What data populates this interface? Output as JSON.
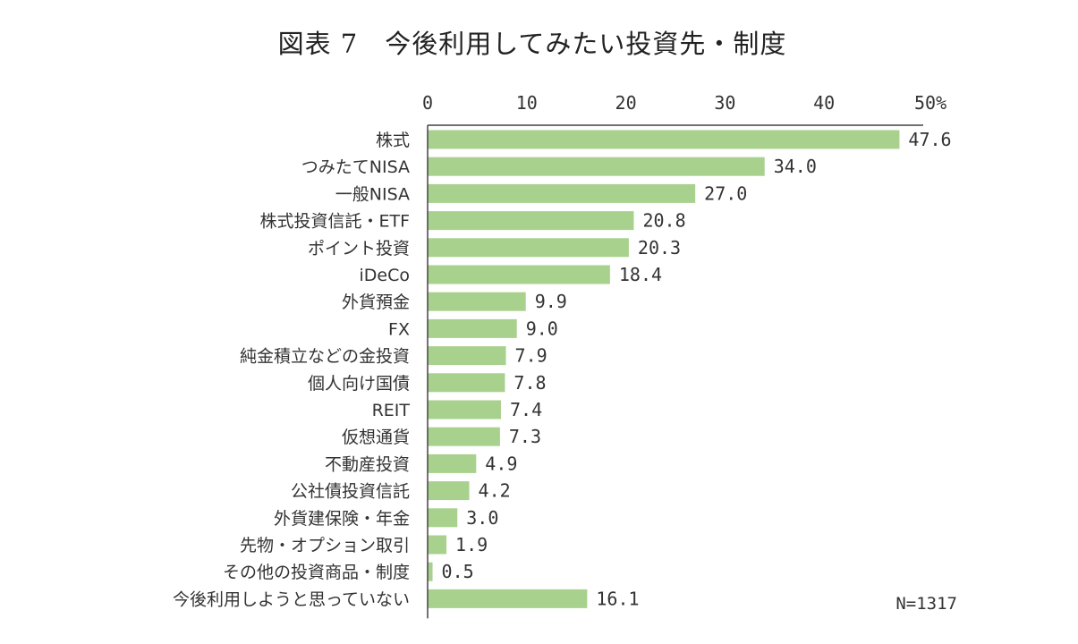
{
  "title": "図表 7　今後利用してみたい投資先・制度",
  "chart_data": {
    "type": "bar",
    "orientation": "horizontal",
    "title": "図表 7　今後利用してみたい投資先・制度",
    "xlim": [
      0,
      50
    ],
    "ticks": [
      "0",
      "10",
      "20",
      "30",
      "40",
      "50%"
    ],
    "tick_values": [
      0,
      10,
      20,
      30,
      40,
      50
    ],
    "grid": false,
    "bar_color": "#a9d18e",
    "categories": [
      "株式",
      "つみたてNISA",
      "一般NISA",
      "株式投資信託・ETF",
      "ポイント投資",
      "iDeCo",
      "外貨預金",
      "FX",
      "純金積立などの金投資",
      "個人向け国債",
      "REIT",
      "仮想通貨",
      "不動産投資",
      "公社債投資信託",
      "外貨建保険・年金",
      "先物・オプション取引",
      "その他の投資商品・制度",
      "今後利用しようと思っていない"
    ],
    "values": [
      47.6,
      34.0,
      27.0,
      20.8,
      20.3,
      18.4,
      9.9,
      9.0,
      7.9,
      7.8,
      7.4,
      7.3,
      4.9,
      4.2,
      3.0,
      1.9,
      0.5,
      16.1
    ],
    "value_labels": [
      "47.6",
      "34.0",
      "27.0",
      "20.8",
      "20.3",
      "18.4",
      "9.9",
      "9.0",
      "7.9",
      "7.8",
      "7.4",
      "7.3",
      "4.9",
      "4.2",
      "3.0",
      "1.9",
      "0.5",
      "16.1"
    ],
    "note": "N=1317"
  }
}
